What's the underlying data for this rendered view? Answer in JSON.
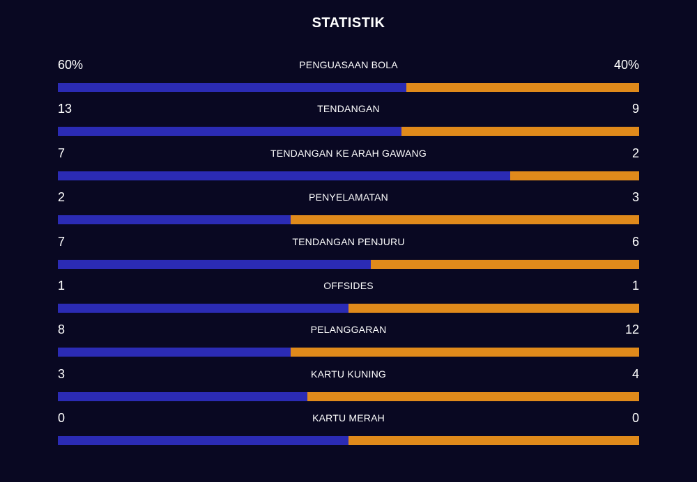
{
  "title": "STATISTIK",
  "colors": {
    "background": "#090822",
    "home": "#2b2bb4",
    "away": "#e08a1b"
  },
  "stats": [
    {
      "label": "PENGUASAAN BOLA",
      "home": "60%",
      "away": "40%",
      "home_share": 0.6
    },
    {
      "label": "TENDANGAN",
      "home": "13",
      "away": "9",
      "home_share": 0.591
    },
    {
      "label": "TENDANGAN KE ARAH GAWANG",
      "home": "7",
      "away": "2",
      "home_share": 0.778
    },
    {
      "label": "PENYELAMATAN",
      "home": "2",
      "away": "3",
      "home_share": 0.4
    },
    {
      "label": "TENDANGAN PENJURU",
      "home": "7",
      "away": "6",
      "home_share": 0.538
    },
    {
      "label": "OFFSIDES",
      "home": "1",
      "away": "1",
      "home_share": 0.5
    },
    {
      "label": "PELANGGARAN",
      "home": "8",
      "away": "12",
      "home_share": 0.4
    },
    {
      "label": "KARTU KUNING",
      "home": "3",
      "away": "4",
      "home_share": 0.429
    },
    {
      "label": "KARTU MERAH",
      "home": "0",
      "away": "0",
      "home_share": 0.5
    }
  ]
}
